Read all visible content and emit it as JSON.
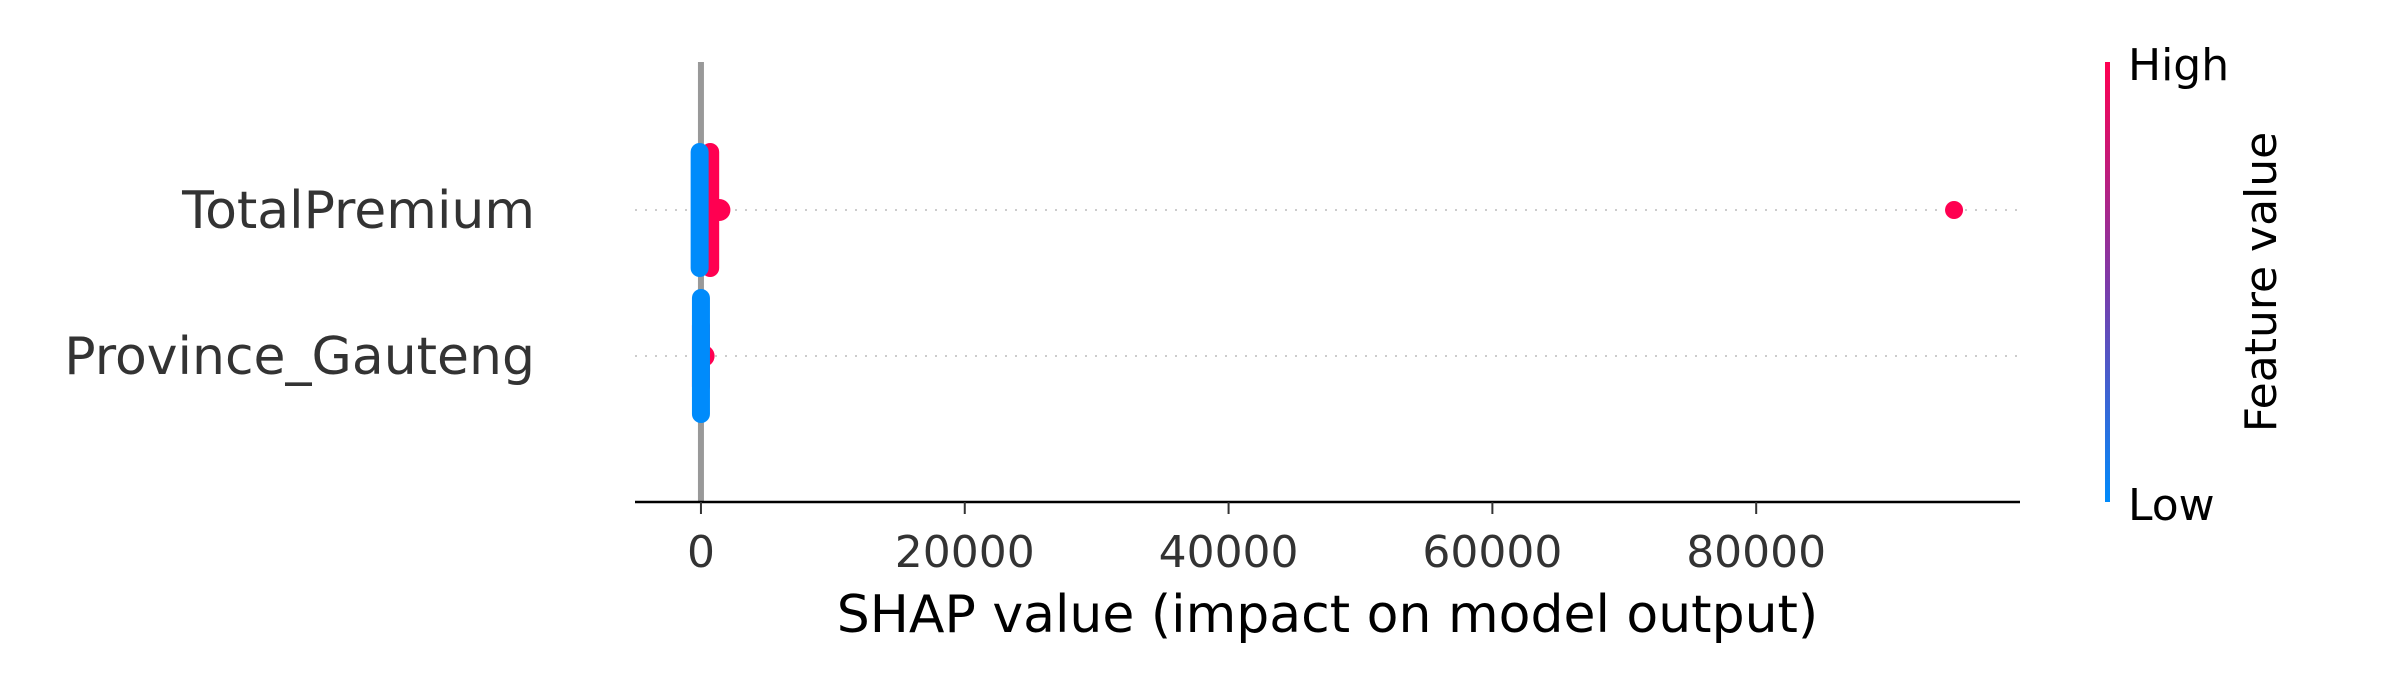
{
  "chart_data": {
    "type": "scatter",
    "subtype": "shap-beeswarm",
    "xlabel": "SHAP value (impact on model output)",
    "xlim": [
      -5000,
      100000
    ],
    "xticks": [
      0,
      20000,
      40000,
      60000,
      80000
    ],
    "xtick_labels": [
      "0",
      "20000",
      "40000",
      "60000",
      "80000"
    ],
    "features": [
      "TotalPremium",
      "Province_Gauteng"
    ],
    "grid": "dotted horizontal per feature",
    "colorbar": {
      "label": "Feature value",
      "high_label": "High",
      "low_label": "Low",
      "high_color": "#ff0051",
      "low_color": "#008bfb",
      "placement": "right"
    },
    "series": [
      {
        "feature": "TotalPremium",
        "points": [
          {
            "x": -100,
            "spread": [
              -0.38,
              0.38
            ],
            "value": "low"
          },
          {
            "x": 700,
            "spread": [
              -0.38,
              0.38
            ],
            "value": "high"
          },
          {
            "x": 1400,
            "spread": [
              -0.05,
              0.05
            ],
            "value": "high"
          },
          {
            "x": 95000,
            "spread": [
              0,
              0
            ],
            "value": "high"
          }
        ]
      },
      {
        "feature": "Province_Gauteng",
        "points": [
          {
            "x": 0,
            "spread": [
              -0.38,
              0.38
            ],
            "value": "low"
          },
          {
            "x": 0,
            "spread": [
              -0.2,
              0.2
            ],
            "value": "high"
          },
          {
            "x": 200,
            "spread": [
              0,
              0
            ],
            "value": "high"
          }
        ]
      }
    ]
  }
}
